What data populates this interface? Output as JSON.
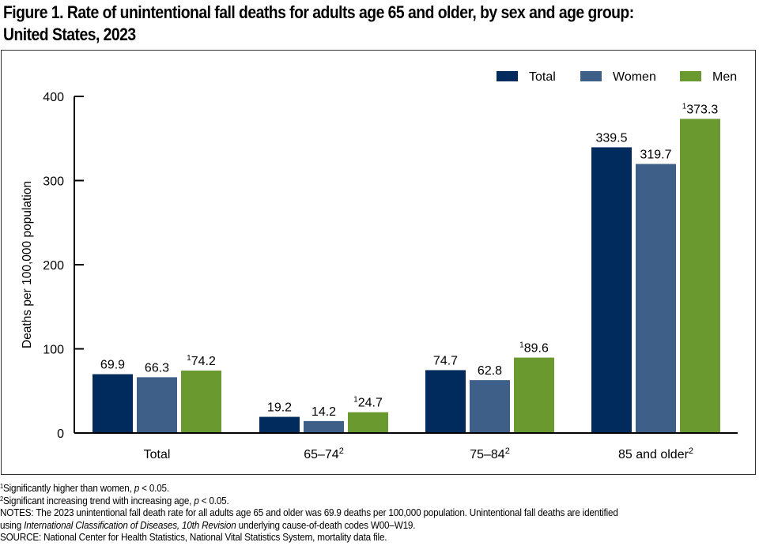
{
  "title": {
    "line1": "Figure 1. Rate of unintentional fall deaths for adults age 65 and older, by sex and age group:",
    "line2": "United States, 2023"
  },
  "chart_data": {
    "type": "bar",
    "title": "Rate of unintentional fall deaths for adults age 65 and older, by sex and age group: United States, 2023",
    "xlabel": "",
    "ylabel": "Deaths per 100,000 population",
    "ylim": [
      0,
      400
    ],
    "yticks": [
      0,
      100,
      200,
      300,
      400
    ],
    "grid": false,
    "legend_position": "top-right",
    "categories": [
      {
        "label": "Total",
        "sup": ""
      },
      {
        "label": "65–74",
        "sup": "2"
      },
      {
        "label": "75–84",
        "sup": "2"
      },
      {
        "label": "85 and older",
        "sup": "2"
      }
    ],
    "series": [
      {
        "name": "Total",
        "color": "#002b5c",
        "values": [
          69.9,
          19.2,
          74.7,
          339.5
        ],
        "label_sup": [
          "",
          "",
          "",
          ""
        ]
      },
      {
        "name": "Women",
        "color": "#3e5f87",
        "values": [
          66.3,
          14.2,
          62.8,
          319.7
        ],
        "label_sup": [
          "",
          "",
          "",
          ""
        ]
      },
      {
        "name": "Men",
        "color": "#6a9a2f",
        "values": [
          74.2,
          24.7,
          89.6,
          373.3
        ],
        "label_sup": [
          "1",
          "1",
          "1",
          "1"
        ]
      }
    ]
  },
  "footnotes": {
    "fn1_marker": "1",
    "fn1_text": "Significantly higher than women, ",
    "fn1_p": "p",
    "fn1_tail": " < 0.05.",
    "fn2_marker": "2",
    "fn2_text": "Significant increasing trend with increasing age, ",
    "fn2_p": "p",
    "fn2_tail": " < 0.05.",
    "notes_line1": "NOTES: The 2023 unintentional fall death rate for all adults age 65 and older was 69.9 deaths per 100,000 population. Unintentional fall deaths are identified",
    "notes_line2_pre": "using ",
    "notes_line2_italic": "International Classification of Diseases, 10th Revision",
    "notes_line2_post": " underlying cause-of-death codes W00–W19.",
    "source": "SOURCE: National Center for Health Statistics, National Vital Statistics System, mortality data file."
  }
}
